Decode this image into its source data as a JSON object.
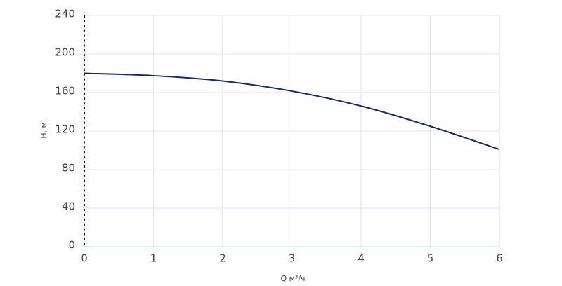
{
  "chart_data": {
    "type": "line",
    "x_label": "Q м³/ч",
    "y_label": "H, м",
    "x": [
      0,
      1,
      2,
      3,
      4,
      5,
      6
    ],
    "series": [
      {
        "color": "#1b2a5c",
        "values": [
          180,
          177.5,
          172,
          161.5,
          146,
          125,
          101
        ]
      }
    ],
    "xlim": [
      0,
      6
    ],
    "xticks": [
      0,
      1,
      2,
      3,
      4,
      5,
      6
    ],
    "ylim": [
      0,
      240
    ],
    "yticks": [
      0,
      40,
      80,
      120,
      160,
      200,
      240
    ],
    "grid": true
  }
}
